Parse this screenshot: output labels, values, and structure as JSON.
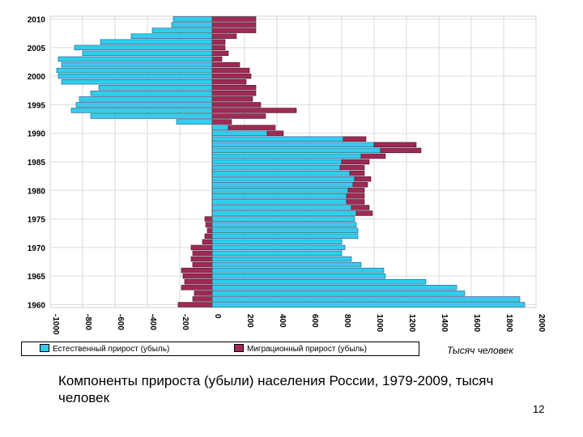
{
  "chart_data": {
    "type": "bar",
    "orientation": "horizontal",
    "stacked": true,
    "title": "",
    "xlabel": "Тысяч человек",
    "ylabel": "",
    "xlim": [
      -1000,
      2000
    ],
    "x_ticks": [
      "-1000",
      "-800",
      "-600",
      "-400",
      "-200",
      "0",
      "200",
      "400",
      "600",
      "800",
      "1000",
      "1200",
      "1400",
      "1600",
      "1800",
      "2000"
    ],
    "y_tick_labels": [
      "1960",
      "1965",
      "1970",
      "1975",
      "1980",
      "1985",
      "1990",
      "1995",
      "2000",
      "2005",
      "2010"
    ],
    "grid": true,
    "legend_position": "bottom",
    "years": [
      1960,
      1961,
      1962,
      1963,
      1964,
      1965,
      1966,
      1967,
      1968,
      1969,
      1970,
      1971,
      1972,
      1973,
      1974,
      1975,
      1976,
      1977,
      1978,
      1979,
      1980,
      1981,
      1982,
      1983,
      1984,
      1985,
      1986,
      1987,
      1988,
      1989,
      1990,
      1991,
      1992,
      1993,
      1994,
      1995,
      1996,
      1997,
      1998,
      1999,
      2000,
      2001,
      2002,
      2003,
      2004,
      2005,
      2006,
      2007,
      2008,
      2009,
      2010
    ],
    "series": [
      {
        "name": "Естественный прирост (убыль)",
        "color": "#33ccee",
        "values": [
          1930,
          1900,
          1560,
          1510,
          1320,
          1070,
          1060,
          920,
          860,
          800,
          820,
          800,
          900,
          900,
          890,
          880,
          890,
          860,
          830,
          830,
          840,
          870,
          880,
          850,
          790,
          800,
          920,
          1040,
          1000,
          810,
          340,
          100,
          -220,
          -750,
          -870,
          -840,
          -820,
          -750,
          -700,
          -930,
          -950,
          -960,
          -930,
          -950,
          -800,
          -850,
          -690,
          -500,
          -370,
          -250,
          -240
        ]
      },
      {
        "name": "Миграционный прирост (убыль)",
        "color": "#9e2a55",
        "values": [
          -210,
          -120,
          -110,
          -190,
          -170,
          -180,
          -190,
          -120,
          -130,
          -120,
          -130,
          -60,
          -45,
          -30,
          -40,
          -45,
          100,
          110,
          110,
          110,
          100,
          90,
          100,
          90,
          150,
          170,
          150,
          250,
          260,
          140,
          100,
          290,
          120,
          330,
          520,
          300,
          250,
          270,
          270,
          210,
          240,
          230,
          170,
          60,
          100,
          80,
          80,
          150,
          270,
          270,
          270
        ]
      }
    ]
  },
  "legend": {
    "natural_label": "Естественный прирост (убыль)",
    "migration_label": "Миграционный прирост (убыль)"
  },
  "caption": "Компоненты прироста (убыли) населения России, 1979-2009, тысяч человек",
  "slide_number": "12"
}
